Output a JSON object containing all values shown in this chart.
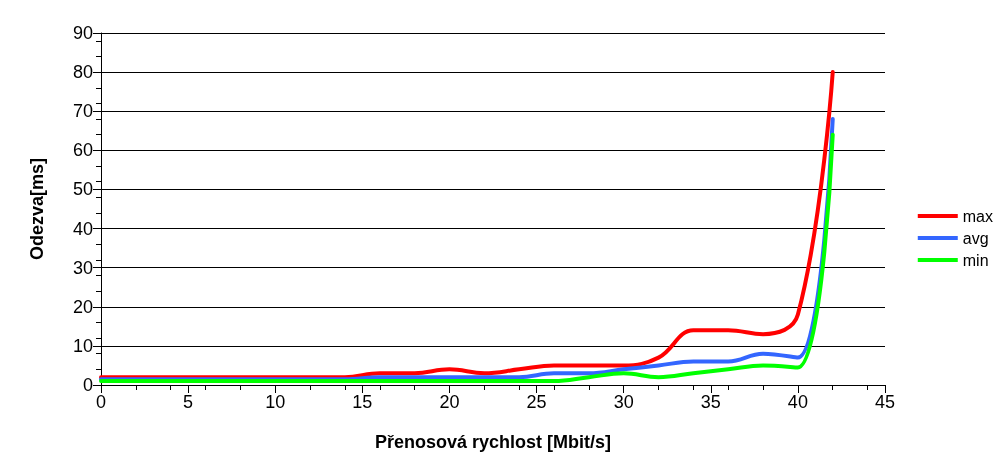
{
  "chart_data": {
    "type": "line",
    "xlabel": "Přenosová rychlost [Mbit/s]",
    "ylabel": "Odezva[ms]",
    "x": [
      0,
      2,
      4,
      6,
      8,
      10,
      12,
      14,
      16,
      18,
      20,
      22,
      24,
      26,
      28,
      30,
      32,
      34,
      36,
      38,
      40,
      42
    ],
    "series": [
      {
        "name": "max",
        "color": "#ff0000",
        "values": [
          2,
          2,
          2,
          2,
          2,
          2,
          2,
          2,
          3,
          3,
          4,
          3,
          4,
          5,
          5,
          5,
          7,
          14,
          14,
          13,
          18,
          80
        ]
      },
      {
        "name": "avg",
        "color": "#3366ff",
        "values": [
          1.5,
          1.5,
          1.5,
          1.5,
          1.5,
          1.5,
          1.5,
          1.5,
          2,
          2,
          2,
          2,
          2,
          3,
          3,
          4,
          5,
          6,
          6,
          8,
          7,
          68
        ]
      },
      {
        "name": "min",
        "color": "#00ff00",
        "values": [
          1,
          1,
          1,
          1,
          1,
          1,
          1,
          1,
          1,
          1,
          1,
          1,
          1,
          1,
          2,
          3,
          2,
          3,
          4,
          5,
          4.5,
          64
        ]
      }
    ],
    "xlim": [
      0,
      45
    ],
    "xticks": [
      0,
      5,
      10,
      15,
      20,
      25,
      30,
      35,
      40,
      45
    ],
    "ylim": [
      0,
      90
    ],
    "yticks": [
      0,
      10,
      20,
      30,
      40,
      50,
      60,
      70,
      80,
      90
    ],
    "grid": "y",
    "legend": "right",
    "marker": "none",
    "line_style": "solid"
  }
}
